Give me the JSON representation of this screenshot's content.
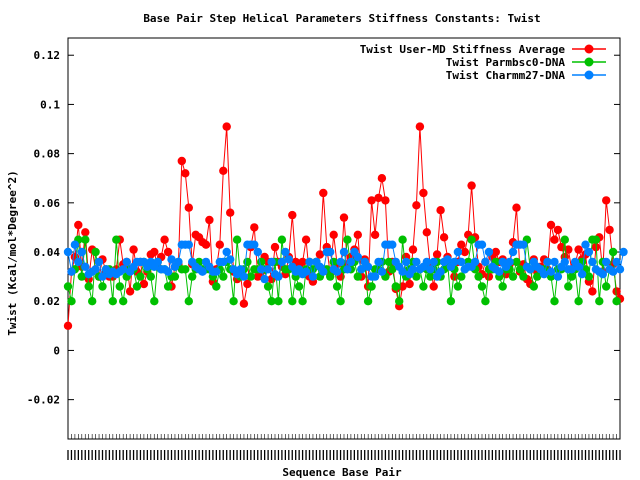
{
  "chart_data": {
    "type": "line",
    "title": "Base Pair Step Helical Parameters Stiffness Constants: Twist",
    "xlabel": "Sequence Base Pair",
    "ylabel": "Twist (Kcal/mol*Degree^2)",
    "ylim": [
      -0.036,
      0.127
    ],
    "y_ticks": [
      -0.02,
      0,
      0.02,
      0.04,
      0.06,
      0.08,
      0.1,
      0.12
    ],
    "y_tick_labels": [
      "-0.02",
      "0",
      "0.02",
      "0.04",
      "0.06",
      "0.08",
      "0.1",
      "0.12"
    ],
    "x_range": [
      1,
      160
    ],
    "x_tick_labels_note": "dense illegible sequence labels along x axis",
    "grid": false,
    "legend_position": "top-right",
    "series": [
      {
        "name": "Twist User-MD Stiffness Average",
        "color": "#ff0000",
        "marker": "circle",
        "values": [
          0.01,
          0.032,
          0.038,
          0.051,
          0.034,
          0.048,
          0.029,
          0.041,
          0.033,
          0.03,
          0.037,
          0.032,
          0.03,
          0.03,
          0.033,
          0.045,
          0.035,
          0.036,
          0.024,
          0.041,
          0.032,
          0.036,
          0.027,
          0.032,
          0.039,
          0.04,
          0.034,
          0.038,
          0.045,
          0.04,
          0.026,
          0.034,
          0.035,
          0.077,
          0.072,
          0.058,
          0.035,
          0.047,
          0.046,
          0.044,
          0.043,
          0.053,
          0.028,
          0.033,
          0.043,
          0.073,
          0.091,
          0.056,
          0.032,
          0.029,
          0.031,
          0.019,
          0.027,
          0.042,
          0.05,
          0.03,
          0.032,
          0.038,
          0.036,
          0.029,
          0.042,
          0.036,
          0.034,
          0.031,
          0.038,
          0.055,
          0.036,
          0.034,
          0.036,
          0.045,
          0.03,
          0.028,
          0.036,
          0.039,
          0.064,
          0.042,
          0.031,
          0.047,
          0.035,
          0.03,
          0.054,
          0.035,
          0.038,
          0.041,
          0.047,
          0.03,
          0.037,
          0.026,
          0.061,
          0.047,
          0.062,
          0.07,
          0.061,
          0.032,
          0.036,
          0.025,
          0.018,
          0.026,
          0.038,
          0.027,
          0.041,
          0.059,
          0.091,
          0.064,
          0.048,
          0.034,
          0.026,
          0.039,
          0.057,
          0.046,
          0.038,
          0.034,
          0.03,
          0.036,
          0.043,
          0.04,
          0.047,
          0.067,
          0.046,
          0.034,
          0.031,
          0.036,
          0.03,
          0.038,
          0.04,
          0.036,
          0.037,
          0.031,
          0.035,
          0.044,
          0.058,
          0.032,
          0.035,
          0.029,
          0.027,
          0.037,
          0.032,
          0.034,
          0.037,
          0.033,
          0.051,
          0.045,
          0.049,
          0.042,
          0.038,
          0.041,
          0.033,
          0.035,
          0.041,
          0.037,
          0.039,
          0.028,
          0.024,
          0.042,
          0.046,
          0.032,
          0.061,
          0.049,
          0.035,
          0.024,
          0.021
        ]
      },
      {
        "name": "Twist Parmbsc0-DNA",
        "color": "#00c000",
        "marker": "circle",
        "values": [
          0.026,
          0.02,
          0.033,
          0.045,
          0.03,
          0.045,
          0.026,
          0.02,
          0.04,
          0.03,
          0.026,
          0.033,
          0.033,
          0.02,
          0.045,
          0.026,
          0.02,
          0.03,
          0.033,
          0.033,
          0.026,
          0.03,
          0.036,
          0.033,
          0.03,
          0.02,
          0.036,
          0.033,
          0.033,
          0.026,
          0.03,
          0.03,
          0.036,
          0.033,
          0.033,
          0.02,
          0.03,
          0.033,
          0.036,
          0.033,
          0.033,
          0.033,
          0.03,
          0.026,
          0.033,
          0.03,
          0.036,
          0.033,
          0.02,
          0.045,
          0.03,
          0.033,
          0.036,
          0.03,
          0.033,
          0.033,
          0.036,
          0.033,
          0.026,
          0.02,
          0.036,
          0.02,
          0.045,
          0.033,
          0.033,
          0.02,
          0.03,
          0.026,
          0.02,
          0.033,
          0.036,
          0.033,
          0.036,
          0.03,
          0.033,
          0.033,
          0.03,
          0.036,
          0.026,
          0.02,
          0.033,
          0.045,
          0.033,
          0.036,
          0.03,
          0.033,
          0.036,
          0.02,
          0.026,
          0.033,
          0.033,
          0.036,
          0.03,
          0.036,
          0.033,
          0.026,
          0.02,
          0.045,
          0.03,
          0.033,
          0.036,
          0.03,
          0.033,
          0.026,
          0.033,
          0.03,
          0.033,
          0.036,
          0.03,
          0.033,
          0.036,
          0.02,
          0.033,
          0.026,
          0.03,
          0.033,
          0.036,
          0.045,
          0.033,
          0.03,
          0.026,
          0.02,
          0.033,
          0.033,
          0.036,
          0.03,
          0.026,
          0.033,
          0.033,
          0.03,
          0.036,
          0.033,
          0.03,
          0.045,
          0.033,
          0.026,
          0.03,
          0.033,
          0.033,
          0.036,
          0.03,
          0.02,
          0.033,
          0.033,
          0.045,
          0.026,
          0.03,
          0.033,
          0.02,
          0.036,
          0.033,
          0.03,
          0.045,
          0.045,
          0.02,
          0.036,
          0.026,
          0.033,
          0.04,
          0.02
        ]
      },
      {
        "name": "Twist Charmm27-DNA",
        "color": "#0080ff",
        "marker": "circle",
        "values": [
          0.04,
          0.032,
          0.043,
          0.036,
          0.04,
          0.034,
          0.031,
          0.032,
          0.033,
          0.036,
          0.03,
          0.033,
          0.031,
          0.032,
          0.031,
          0.032,
          0.033,
          0.036,
          0.032,
          0.034,
          0.036,
          0.036,
          0.036,
          0.034,
          0.036,
          0.034,
          0.036,
          0.033,
          0.033,
          0.032,
          0.037,
          0.034,
          0.036,
          0.043,
          0.043,
          0.043,
          0.036,
          0.034,
          0.033,
          0.032,
          0.036,
          0.034,
          0.032,
          0.032,
          0.036,
          0.036,
          0.04,
          0.037,
          0.033,
          0.031,
          0.033,
          0.03,
          0.043,
          0.043,
          0.043,
          0.04,
          0.033,
          0.029,
          0.033,
          0.036,
          0.031,
          0.03,
          0.036,
          0.04,
          0.037,
          0.034,
          0.032,
          0.033,
          0.031,
          0.032,
          0.036,
          0.03,
          0.036,
          0.034,
          0.032,
          0.04,
          0.04,
          0.033,
          0.032,
          0.036,
          0.04,
          0.033,
          0.036,
          0.04,
          0.038,
          0.033,
          0.036,
          0.034,
          0.03,
          0.03,
          0.036,
          0.032,
          0.043,
          0.043,
          0.043,
          0.036,
          0.034,
          0.032,
          0.036,
          0.031,
          0.033,
          0.036,
          0.033,
          0.034,
          0.036,
          0.033,
          0.036,
          0.03,
          0.032,
          0.036,
          0.037,
          0.034,
          0.036,
          0.04,
          0.036,
          0.033,
          0.034,
          0.034,
          0.036,
          0.043,
          0.043,
          0.036,
          0.04,
          0.034,
          0.033,
          0.032,
          0.036,
          0.034,
          0.036,
          0.04,
          0.043,
          0.043,
          0.043,
          0.034,
          0.033,
          0.036,
          0.034,
          0.033,
          0.031,
          0.036,
          0.032,
          0.036,
          0.03,
          0.034,
          0.036,
          0.033,
          0.033,
          0.036,
          0.034,
          0.031,
          0.043,
          0.04,
          0.036,
          0.033,
          0.032,
          0.031,
          0.036,
          0.033,
          0.032,
          0.036,
          0.033,
          0.04
        ]
      }
    ]
  }
}
